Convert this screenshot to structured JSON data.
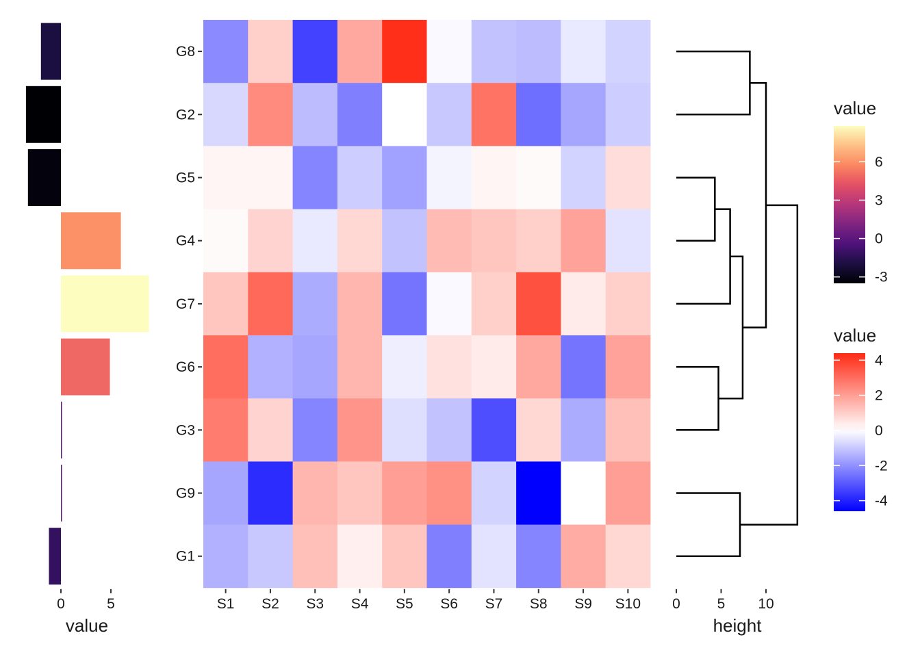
{
  "chart_data": [
    {
      "type": "heatmap",
      "columns": [
        "S1",
        "S2",
        "S3",
        "S4",
        "S5",
        "S6",
        "S7",
        "S8",
        "S9",
        "S10"
      ],
      "rows": [
        "G8",
        "G2",
        "G5",
        "G4",
        "G7",
        "G6",
        "G3",
        "G9",
        "G1"
      ],
      "values": [
        [
          -2.1,
          1.0,
          -3.4,
          1.8,
          4.3,
          -0.1,
          -1.1,
          -1.2,
          -0.4,
          -0.8
        ],
        [
          -0.7,
          2.4,
          -1.2,
          -2.3,
          0.0,
          -1.0,
          2.9,
          -2.6,
          -1.6,
          -0.9
        ],
        [
          0.2,
          0.2,
          -2.2,
          -0.9,
          -1.7,
          -0.2,
          0.2,
          0.1,
          -0.8,
          0.7
        ],
        [
          0.1,
          0.9,
          -0.4,
          0.8,
          -1.1,
          1.4,
          1.2,
          1.0,
          1.9,
          -0.5
        ],
        [
          1.2,
          3.1,
          -1.5,
          1.5,
          -2.5,
          -0.1,
          1.0,
          3.6,
          0.4,
          1.0
        ],
        [
          3.0,
          -1.4,
          -1.6,
          1.5,
          -0.3,
          0.6,
          0.4,
          1.8,
          -2.5,
          1.9
        ],
        [
          2.7,
          0.9,
          -2.2,
          2.2,
          -0.6,
          -1.1,
          -3.2,
          0.8,
          -1.5,
          1.3
        ],
        [
          -1.6,
          -3.8,
          1.5,
          1.2,
          2.0,
          2.3,
          -0.8,
          -4.6,
          0.0,
          2.0
        ],
        [
          -1.4,
          -1.0,
          1.3,
          0.3,
          1.2,
          -2.3,
          -0.5,
          -2.2,
          1.7,
          0.8
        ]
      ],
      "xlabel": "",
      "ylabel": "",
      "legend": {
        "title": "value",
        "ticks": [
          4,
          2,
          0,
          -2,
          -4
        ],
        "range": [
          -4.6,
          4.4
        ],
        "colors": {
          "low": "#0000FF",
          "mid": "#FFFFFF",
          "high": "#FF2A14"
        },
        "placement": "right"
      }
    },
    {
      "type": "bar",
      "orientation": "horizontal",
      "categories": [
        "G8",
        "G2",
        "G5",
        "G4",
        "G7",
        "G6",
        "G3",
        "G9",
        "G1"
      ],
      "values": [
        -2.0,
        -3.5,
        -3.3,
        6.0,
        8.8,
        4.9,
        0.1,
        0.05,
        -1.2
      ],
      "xlabel": "value",
      "xlim": [
        -3.5,
        8.8
      ],
      "xticks": [
        0,
        5
      ],
      "legend": {
        "title": "value",
        "ticks": [
          6,
          3,
          0,
          -3
        ],
        "range": [
          -3.5,
          8.8
        ],
        "palette": "magma",
        "placement": "right"
      }
    },
    {
      "type": "dendrogram",
      "leaves": [
        "G8",
        "G2",
        "G5",
        "G4",
        "G7",
        "G6",
        "G3",
        "G9",
        "G1"
      ],
      "merges": [
        {
          "left": "G8",
          "right": "G2",
          "height": 8.2
        },
        {
          "left": "G5",
          "right": "G4",
          "height": 4.3
        },
        {
          "left": "G5+G4",
          "right": "G7",
          "height": 6.0
        },
        {
          "left": "G6",
          "right": "G3",
          "height": 4.7
        },
        {
          "left": "G5+G4+G7",
          "right": "G6+G3",
          "height": 7.4
        },
        {
          "left": "G8+G2",
          "right": "G5+G4+G7+G6+G3",
          "height": 10.0
        },
        {
          "left": "G9",
          "right": "G1",
          "height": 7.1
        },
        {
          "left": "G8..G3",
          "right": "G9+G1",
          "height": 13.5
        }
      ],
      "xlabel": "height",
      "xticks": [
        0,
        5,
        10
      ]
    }
  ]
}
